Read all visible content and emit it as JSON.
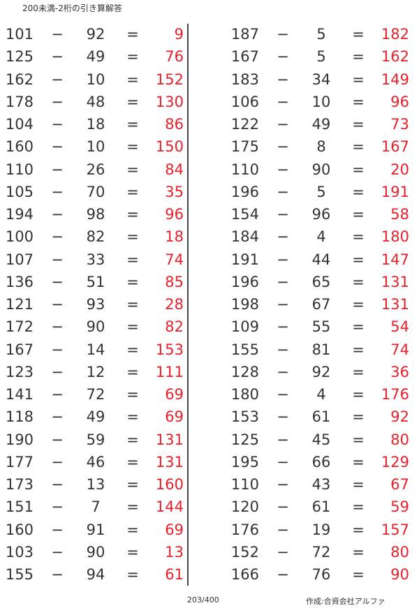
{
  "title": "200未満-2桁の引き算解答",
  "operator": "−",
  "equals": "=",
  "accent_color": "#e8202a",
  "left_column": [
    [
      101,
      92,
      9
    ],
    [
      125,
      49,
      76
    ],
    [
      162,
      10,
      152
    ],
    [
      178,
      48,
      130
    ],
    [
      104,
      18,
      86
    ],
    [
      160,
      10,
      150
    ],
    [
      110,
      26,
      84
    ],
    [
      105,
      70,
      35
    ],
    [
      194,
      98,
      96
    ],
    [
      100,
      82,
      18
    ],
    [
      107,
      33,
      74
    ],
    [
      136,
      51,
      85
    ],
    [
      121,
      93,
      28
    ],
    [
      172,
      90,
      82
    ],
    [
      167,
      14,
      153
    ],
    [
      123,
      12,
      111
    ],
    [
      141,
      72,
      69
    ],
    [
      118,
      49,
      69
    ],
    [
      190,
      59,
      131
    ],
    [
      177,
      46,
      131
    ],
    [
      173,
      13,
      160
    ],
    [
      151,
      7,
      144
    ],
    [
      160,
      91,
      69
    ],
    [
      103,
      90,
      13
    ],
    [
      155,
      94,
      61
    ]
  ],
  "right_column": [
    [
      187,
      5,
      182
    ],
    [
      167,
      5,
      162
    ],
    [
      183,
      34,
      149
    ],
    [
      106,
      10,
      96
    ],
    [
      122,
      49,
      73
    ],
    [
      175,
      8,
      167
    ],
    [
      110,
      90,
      20
    ],
    [
      196,
      5,
      191
    ],
    [
      154,
      96,
      58
    ],
    [
      184,
      4,
      180
    ],
    [
      191,
      44,
      147
    ],
    [
      196,
      65,
      131
    ],
    [
      198,
      67,
      131
    ],
    [
      109,
      55,
      54
    ],
    [
      155,
      81,
      74
    ],
    [
      128,
      92,
      36
    ],
    [
      180,
      4,
      176
    ],
    [
      153,
      61,
      92
    ],
    [
      125,
      45,
      80
    ],
    [
      195,
      66,
      129
    ],
    [
      110,
      43,
      67
    ],
    [
      120,
      61,
      59
    ],
    [
      176,
      19,
      157
    ],
    [
      152,
      72,
      80
    ],
    [
      166,
      76,
      90
    ]
  ],
  "footer": {
    "page": "203/400",
    "author": "作成:合資会社アルファ"
  }
}
